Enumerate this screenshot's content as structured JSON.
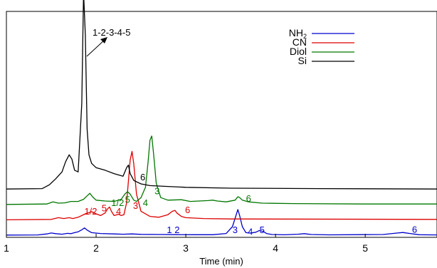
{
  "chart_data": {
    "type": "line",
    "title": "",
    "xlabel": "Time (min)",
    "ylabel": "",
    "xlim": [
      1,
      5.8
    ],
    "xticks": [
      1,
      2,
      3,
      4,
      5
    ],
    "grid": false,
    "legend_position": "top-right",
    "annotation": "1-2-3-4-5",
    "series": [
      {
        "name": "NH2",
        "legend_label": "NH",
        "legend_sub": "2",
        "color": "#0000cc",
        "offset": 0,
        "x": [
          1.0,
          1.35,
          1.45,
          1.5,
          1.55,
          1.62,
          1.68,
          1.72,
          1.76,
          1.8,
          1.84,
          1.87,
          1.9,
          1.95,
          2.05,
          2.2,
          2.3,
          2.4,
          2.5,
          2.7,
          2.9,
          3.1,
          3.3,
          3.45,
          3.52,
          3.55,
          3.58,
          3.6,
          3.63,
          3.67,
          3.72,
          3.78,
          3.82,
          3.86,
          3.9,
          3.96,
          4.1,
          4.25,
          4.32,
          4.4,
          4.6,
          5.2,
          5.35,
          5.42,
          5.5,
          5.6,
          5.8
        ],
        "y": [
          0.2,
          0.3,
          1.5,
          2.6,
          1.8,
          1.2,
          2.2,
          1.8,
          3.0,
          4.0,
          6.3,
          8.5,
          6.0,
          3.0,
          2.0,
          1.5,
          1.2,
          1.5,
          1.0,
          0.8,
          0.7,
          0.6,
          0.6,
          2.0,
          10.0,
          20.0,
          30.0,
          23.0,
          10.0,
          3.0,
          2.5,
          3.5,
          5.5,
          4.5,
          2.0,
          0.8,
          0.5,
          1.2,
          1.8,
          0.8,
          0.4,
          0.8,
          2.5,
          3.2,
          2.0,
          0.6,
          0.3
        ]
      },
      {
        "name": "CN",
        "legend_label": "CN",
        "color": "#dd0000",
        "offset": 18,
        "x": [
          1.0,
          1.5,
          1.58,
          1.64,
          1.7,
          1.74,
          1.8,
          1.88,
          1.95,
          2.0,
          2.05,
          2.1,
          2.13,
          2.15,
          2.17,
          2.2,
          2.25,
          2.28,
          2.31,
          2.34,
          2.36,
          2.38,
          2.4,
          2.42,
          2.45,
          2.5,
          2.6,
          2.7,
          2.8,
          2.85,
          2.88,
          2.9,
          2.95,
          3.0,
          3.2,
          3.5,
          5.8
        ],
        "y": [
          0.0,
          0.5,
          2.5,
          1.5,
          2.5,
          1.5,
          3.0,
          7.0,
          9.5,
          7.0,
          5.0,
          8.0,
          13.0,
          15.0,
          10.0,
          5.0,
          6.5,
          5.0,
          6.0,
          20.0,
          45.0,
          70.0,
          80.0,
          65.0,
          30.0,
          10.0,
          4.0,
          3.0,
          6.0,
          10.0,
          11.0,
          8.0,
          4.0,
          2.5,
          1.5,
          1.0,
          0.5
        ]
      },
      {
        "name": "Diol",
        "legend_label": "Diol",
        "color": "#007700",
        "offset": 36,
        "x": [
          1.0,
          1.45,
          1.52,
          1.58,
          1.65,
          1.72,
          1.8,
          1.86,
          1.9,
          1.93,
          1.96,
          2.0,
          2.1,
          2.2,
          2.28,
          2.32,
          2.35,
          2.38,
          2.42,
          2.45,
          2.5,
          2.55,
          2.58,
          2.6,
          2.62,
          2.64,
          2.67,
          2.72,
          2.8,
          2.95,
          3.05,
          3.15,
          3.25,
          3.3,
          3.35,
          3.45,
          3.55,
          3.58,
          3.6,
          3.63,
          3.7,
          3.85,
          4.2,
          5.0,
          5.8
        ],
        "y": [
          0.0,
          0.5,
          3.0,
          1.5,
          1.8,
          3.5,
          3.5,
          6.0,
          10.0,
          13.0,
          9.0,
          5.0,
          4.0,
          3.5,
          6.0,
          12.0,
          15.0,
          12.0,
          5.0,
          3.5,
          8.0,
          20.0,
          50.0,
          75.0,
          80.0,
          60.0,
          25.0,
          8.0,
          5.0,
          5.5,
          3.5,
          4.0,
          4.5,
          5.0,
          4.0,
          3.0,
          5.0,
          9.0,
          8.0,
          5.0,
          3.0,
          1.5,
          1.0,
          0.5,
          0.5
        ]
      },
      {
        "name": "Si",
        "legend_label": "Si",
        "color": "#000000",
        "offset": 54,
        "x": [
          1.0,
          1.4,
          1.48,
          1.55,
          1.62,
          1.66,
          1.7,
          1.73,
          1.76,
          1.8,
          1.84,
          1.86,
          1.88,
          1.9,
          1.92,
          1.95,
          2.0,
          2.1,
          2.2,
          2.3,
          2.34,
          2.36,
          2.38,
          2.42,
          2.5,
          2.6,
          2.8,
          3.0,
          3.5,
          4.5,
          5.8
        ],
        "y": [
          0.0,
          0.5,
          5.0,
          12.0,
          20.0,
          32.0,
          40.0,
          35.0,
          22.0,
          20.0,
          100.0,
          230.0,
          180.0,
          70.0,
          40.0,
          30.0,
          25.0,
          22.0,
          18.0,
          15.0,
          25.0,
          28.0,
          18.0,
          10.0,
          6.0,
          4.0,
          3.0,
          2.0,
          1.0,
          0.5,
          0.0
        ]
      }
    ],
    "peak_labels": [
      {
        "series": "NH2",
        "text": "1 2",
        "x": 2.86,
        "y": 2.5
      },
      {
        "series": "NH2",
        "text": "3",
        "x": 3.55,
        "y": 2.5
      },
      {
        "series": "NH2",
        "text": "4",
        "x": 3.72,
        "y": 0.5
      },
      {
        "series": "NH2",
        "text": "5",
        "x": 3.85,
        "y": 2.5
      },
      {
        "series": "NH2",
        "text": "6",
        "x": 5.55,
        "y": 3.0
      },
      {
        "series": "CN",
        "text": "1/2",
        "x": 1.94,
        "y": 6.0
      },
      {
        "series": "CN",
        "text": "5",
        "x": 2.09,
        "y": 10.0
      },
      {
        "series": "CN",
        "text": "4",
        "x": 2.25,
        "y": 6.0
      },
      {
        "series": "CN",
        "text": "3",
        "x": 2.44,
        "y": 13.0
      },
      {
        "series": "CN",
        "text": "6",
        "x": 3.02,
        "y": 8.0
      },
      {
        "series": "Diol",
        "text": "1/2",
        "x": 2.24,
        "y": -2.0
      },
      {
        "series": "Diol",
        "text": "5",
        "x": 2.35,
        "y": 2.0
      },
      {
        "series": "Diol",
        "text": "4",
        "x": 2.55,
        "y": -2.0
      },
      {
        "series": "Diol",
        "text": "3",
        "x": 2.68,
        "y": 12.0
      },
      {
        "series": "Diol",
        "text": "6",
        "x": 3.7,
        "y": 3.0
      },
      {
        "series": "Si",
        "text": "6",
        "x": 2.52,
        "y": 10.0
      }
    ]
  }
}
